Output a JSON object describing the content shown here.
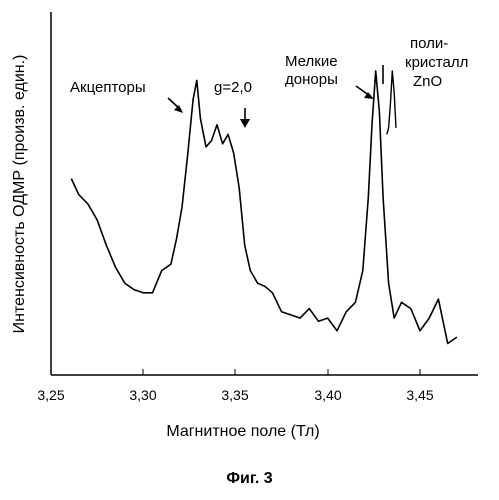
{
  "chart_data": {
    "type": "line",
    "xlabel": "Магнитное поле (Тл)",
    "ylabel": "Интенсивность ОДМР (произв. един.)",
    "xlim": [
      3.25,
      3.48
    ],
    "ylim": [
      0,
      1
    ],
    "x_ticks": [
      3.25,
      3.3,
      3.35,
      3.4,
      3.45
    ],
    "x_tick_labels": [
      "3,25",
      "3,30",
      "3,35",
      "3,40",
      "3,45"
    ],
    "grid": false,
    "series": [
      {
        "x": [
          3.261,
          3.265,
          3.27,
          3.275,
          3.28,
          3.285,
          3.29,
          3.295,
          3.3,
          3.305,
          3.31,
          3.315,
          3.318,
          3.321,
          3.324,
          3.327,
          3.329,
          3.331,
          3.334,
          3.337,
          3.34,
          3.343,
          3.346,
          3.349,
          3.352,
          3.355,
          3.358,
          3.362,
          3.366,
          3.37,
          3.375,
          3.38,
          3.385,
          3.39,
          3.395,
          3.4,
          3.405,
          3.41,
          3.415,
          3.419,
          3.422,
          3.424,
          3.426,
          3.428,
          3.43,
          3.433,
          3.436,
          3.44,
          3.445,
          3.45,
          3.455,
          3.46,
          3.465,
          3.47
        ],
        "y": [
          0.61,
          0.56,
          0.53,
          0.48,
          0.4,
          0.33,
          0.28,
          0.26,
          0.25,
          0.25,
          0.32,
          0.34,
          0.42,
          0.52,
          0.68,
          0.86,
          0.92,
          0.8,
          0.71,
          0.73,
          0.78,
          0.72,
          0.75,
          0.69,
          0.58,
          0.4,
          0.32,
          0.28,
          0.27,
          0.25,
          0.19,
          0.18,
          0.17,
          0.2,
          0.16,
          0.17,
          0.13,
          0.19,
          0.22,
          0.32,
          0.55,
          0.78,
          0.95,
          0.82,
          0.55,
          0.28,
          0.17,
          0.22,
          0.2,
          0.13,
          0.17,
          0.23,
          0.09,
          0.11
        ]
      }
    ],
    "inset": {
      "x": [
        3.432,
        3.433,
        3.434,
        3.435,
        3.436,
        3.437
      ],
      "y": [
        0.75,
        0.77,
        0.85,
        0.95,
        0.88,
        0.77
      ]
    },
    "annotations": {
      "acceptors": "Акцепторы",
      "g_value": "g=2,0",
      "shallow_donors_line1": "Мелкие",
      "shallow_donors_line2": "доноры",
      "polycrystal_line1": "поли-",
      "polycrystal_line2": "кристалл",
      "polycrystal_line3": "ZnO"
    }
  },
  "caption": "Фиг. 3"
}
